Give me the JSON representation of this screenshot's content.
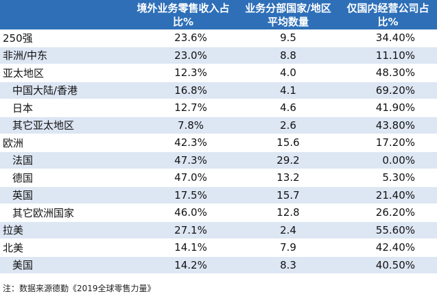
{
  "table": {
    "headers": [
      "",
      "境外业务零售收入占比%",
      "业务分部国家/地区平均数量",
      "仅国内经营公司占比%"
    ],
    "rows": [
      {
        "name": "250强",
        "sub": false,
        "overseas_share": "23.6%",
        "avg_countries": "9.5",
        "domestic_only": "34.40%"
      },
      {
        "name": "非洲/中东",
        "sub": false,
        "overseas_share": "23.0%",
        "avg_countries": "8.8",
        "domestic_only": "11.10%"
      },
      {
        "name": "亚太地区",
        "sub": false,
        "overseas_share": "12.3%",
        "avg_countries": "4.0",
        "domestic_only": "48.30%"
      },
      {
        "name": "中国大陆/香港",
        "sub": true,
        "overseas_share": "16.8%",
        "avg_countries": "4.1",
        "domestic_only": "69.20%"
      },
      {
        "name": "日本",
        "sub": true,
        "overseas_share": "12.7%",
        "avg_countries": "4.6",
        "domestic_only": "41.90%"
      },
      {
        "name": "其它亚太地区",
        "sub": true,
        "overseas_share": "7.8%",
        "avg_countries": "2.6",
        "domestic_only": "43.80%"
      },
      {
        "name": "欧洲",
        "sub": false,
        "overseas_share": "42.3%",
        "avg_countries": "15.6",
        "domestic_only": "17.20%"
      },
      {
        "name": "法国",
        "sub": true,
        "overseas_share": "47.3%",
        "avg_countries": "29.2",
        "domestic_only": "0.00%"
      },
      {
        "name": "德国",
        "sub": true,
        "overseas_share": "47.0%",
        "avg_countries": "13.2",
        "domestic_only": "5.30%"
      },
      {
        "name": "英国",
        "sub": true,
        "overseas_share": "17.5%",
        "avg_countries": "15.7",
        "domestic_only": "21.40%"
      },
      {
        "name": "其它欧洲国家",
        "sub": true,
        "overseas_share": "46.0%",
        "avg_countries": "12.8",
        "domestic_only": "26.20%"
      },
      {
        "name": "拉美",
        "sub": false,
        "overseas_share": "27.1%",
        "avg_countries": "2.4",
        "domestic_only": "55.60%"
      },
      {
        "name": "北美",
        "sub": false,
        "overseas_share": "14.1%",
        "avg_countries": "7.9",
        "domestic_only": "42.40%"
      },
      {
        "name": "美国",
        "sub": true,
        "overseas_share": "14.2%",
        "avg_countries": "8.3",
        "domestic_only": "40.50%"
      }
    ]
  },
  "note": "注：数据来源德勤《2019全球零售力量》",
  "colors": {
    "header_bg": "#2e6fb8",
    "stripe": "#dde6f3"
  }
}
